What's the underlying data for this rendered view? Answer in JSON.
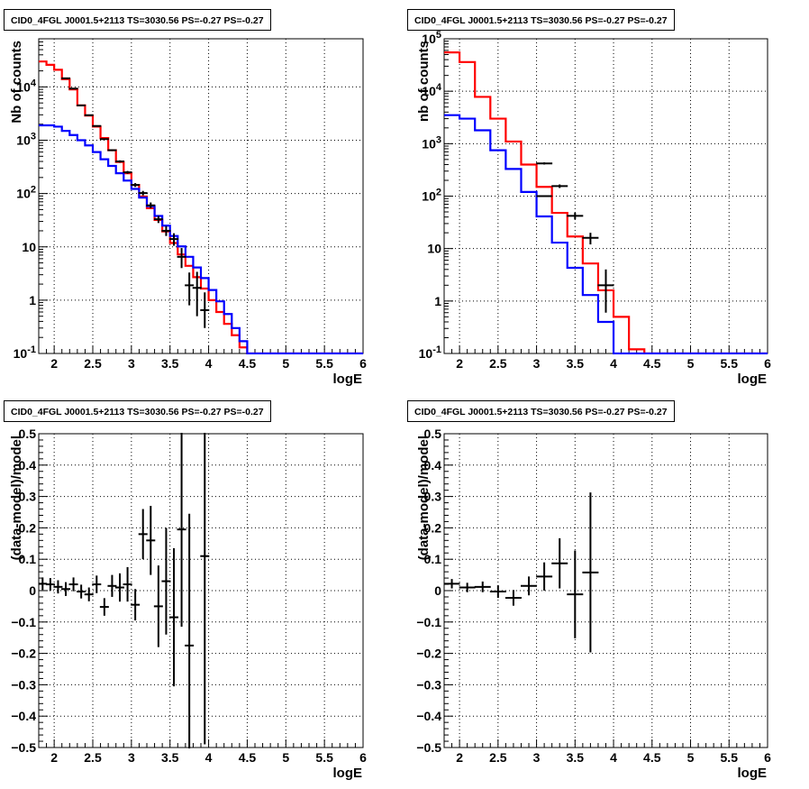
{
  "chart_data": [
    {
      "type": "line",
      "title": "CID0_4FGL J0001.5+2113 TS=3030.56 PS=-0.27 PS=-0.27",
      "xlabel": "logE",
      "ylabel": "Nb of counts",
      "xlim": [
        1.8,
        6.0
      ],
      "ylim": [
        0.1,
        80000
      ],
      "log_y": true,
      "grid": true,
      "xticks": [
        "2",
        "2.5",
        "3",
        "3.5",
        "4",
        "4.5",
        "5",
        "5.5",
        "6"
      ],
      "yticks": [
        "10^-1",
        "1",
        "10",
        "10^2",
        "10^3",
        "10^4"
      ],
      "bin_edges": [
        1.8,
        1.9,
        2.0,
        2.1,
        2.2,
        2.3,
        2.4,
        2.5,
        2.6,
        2.7,
        2.8,
        2.9,
        3.0,
        3.1,
        3.2,
        3.3,
        3.4,
        3.5,
        3.6,
        3.7,
        3.8,
        3.9,
        4.0,
        4.1,
        4.2,
        4.3,
        4.4,
        4.5,
        4.6,
        4.7,
        4.8,
        4.9,
        5.0,
        5.1,
        5.2,
        5.3,
        5.4,
        5.5,
        5.6,
        5.7,
        5.8,
        5.9,
        6.0
      ],
      "series": [
        {
          "color": "#ff0000",
          "values": [
            30000,
            26000,
            21000,
            14000,
            9000,
            4500,
            2900,
            1800,
            1100,
            650,
            390,
            240,
            145,
            88,
            53,
            32,
            19.5,
            11.8,
            7.2,
            4.4,
            2.7,
            1.65,
            1.0,
            0.6,
            0.36,
            0.22,
            0.13,
            0.1,
            0.1,
            0.1,
            0.1,
            0.1,
            0.1,
            0.1,
            0.1,
            0.1,
            0.1,
            0.1,
            0.1,
            0.1,
            0.1,
            0.1
          ]
        },
        {
          "color": "#0000ff",
          "values": [
            1900,
            1900,
            1800,
            1500,
            1250,
            1000,
            800,
            600,
            440,
            330,
            240,
            175,
            122,
            84,
            58,
            38,
            25,
            16,
            10.2,
            6.5,
            4.1,
            2.6,
            1.55,
            0.95,
            0.55,
            0.3,
            0.17,
            0.1,
            0.1,
            0.1,
            0.1,
            0.1,
            0.1,
            0.1,
            0.1,
            0.1,
            0.1,
            0.1,
            0.1,
            0.1,
            0.1,
            0.1
          ]
        }
      ],
      "data_points": {
        "color": "#000000",
        "x": [
          2.15,
          2.25,
          2.35,
          2.45,
          2.55,
          2.65,
          2.75,
          2.85,
          2.95,
          3.05,
          3.15,
          3.25,
          3.35,
          3.45,
          3.55,
          3.65,
          3.75,
          3.85,
          3.95
        ],
        "y": [
          14500,
          9300,
          4500,
          2950,
          1850,
          1050,
          650,
          400,
          250,
          145,
          102,
          60,
          33,
          20,
          14,
          6.5,
          1.9,
          1.7,
          0.65
        ],
        "ylo": [
          14300,
          9100,
          4430,
          2890,
          1810,
          1020,
          625,
          380,
          235,
          133,
          92,
          53,
          28,
          16,
          10.5,
          4,
          0.8,
          0.5,
          0.3
        ],
        "yhi": [
          14700,
          9500,
          4570,
          3010,
          1890,
          1080,
          675,
          420,
          265,
          157,
          112,
          68,
          38,
          24.5,
          18,
          9.5,
          3.3,
          3.4,
          1.4
        ]
      }
    },
    {
      "type": "line",
      "title": "CID0_4FGL J0001.5+2113 TS=3030.56 PS=-0.27 PS=-0.27",
      "xlabel": "logE",
      "ylabel": "nb of counts",
      "xlim": [
        1.8,
        6.0
      ],
      "ylim": [
        0.1,
        100000
      ],
      "log_y": true,
      "grid": true,
      "xticks": [
        "2",
        "2.5",
        "3",
        "3.5",
        "4",
        "4.5",
        "5",
        "5.5",
        "6"
      ],
      "yticks": [
        "10^-1",
        "1",
        "10",
        "10^2",
        "10^3",
        "10^4",
        "10^5"
      ],
      "bin_edges": [
        1.8,
        2.0,
        2.2,
        2.4,
        2.6,
        2.8,
        3.0,
        3.2,
        3.4,
        3.6,
        3.8,
        4.0,
        4.2,
        4.4,
        4.6,
        4.8,
        5.0,
        5.2,
        5.4,
        5.6,
        5.8,
        6.0
      ],
      "series": [
        {
          "color": "#ff0000",
          "values": [
            55000,
            36000,
            7800,
            3000,
            1100,
            400,
            150,
            48,
            17,
            5.2,
            1.6,
            0.5,
            0.12,
            0.1,
            0.1,
            0.1,
            0.1,
            0.1,
            0.1,
            0.1,
            0.1
          ]
        },
        {
          "color": "#0000ff",
          "values": [
            3500,
            3000,
            1800,
            750,
            330,
            120,
            41,
            13,
            4.3,
            1.3,
            0.4,
            0.1,
            0.1,
            0.1,
            0.1,
            0.1,
            0.1,
            0.1,
            0.1,
            0.1,
            0.1
          ]
        },
        {
          "color": "#000000",
          "values": [
            null,
            null,
            null,
            null,
            null,
            null,
            100,
            null,
            null,
            null,
            null,
            null,
            null,
            null,
            null,
            null,
            null,
            null,
            null,
            null,
            null
          ]
        }
      ],
      "data_points": {
        "color": "#000000",
        "x": [
          3.1,
          3.3,
          3.5,
          3.7,
          3.9
        ],
        "y": [
          420,
          155,
          42,
          16,
          2
        ],
        "ylo": [
          400,
          143,
          36,
          12,
          0.6
        ],
        "yhi": [
          440,
          167,
          48.5,
          20,
          4
        ]
      }
    },
    {
      "type": "scatter",
      "title": "CID0_4FGL J0001.5+2113 TS=3030.56 PS=-0.27 PS=-0.27",
      "xlabel": "logE",
      "ylabel": "(data-model)/model",
      "xlim": [
        1.8,
        6.0
      ],
      "ylim": [
        -0.5,
        0.5
      ],
      "grid": true,
      "xticks": [
        "2",
        "2.5",
        "3",
        "3.5",
        "4",
        "4.5",
        "5",
        "5.5",
        "6"
      ],
      "yticks": [
        "-0.5",
        "-0.4",
        "-0.3",
        "-0.2",
        "-0.1",
        "0",
        "0.1",
        "0.2",
        "0.3",
        "0.4",
        "0.5"
      ],
      "points": [
        {
          "x": 1.85,
          "y": 0.022,
          "err": 0.02
        },
        {
          "x": 1.95,
          "y": 0.02,
          "err": 0.02
        },
        {
          "x": 2.05,
          "y": 0.012,
          "err": 0.021
        },
        {
          "x": 2.15,
          "y": 0.005,
          "err": 0.022
        },
        {
          "x": 2.25,
          "y": 0.02,
          "err": 0.022
        },
        {
          "x": 2.35,
          "y": -0.003,
          "err": 0.022
        },
        {
          "x": 2.45,
          "y": -0.012,
          "err": 0.022
        },
        {
          "x": 2.55,
          "y": 0.02,
          "err": 0.028
        },
        {
          "x": 2.65,
          "y": -0.052,
          "err": 0.028
        },
        {
          "x": 2.75,
          "y": 0.015,
          "err": 0.035
        },
        {
          "x": 2.85,
          "y": 0.01,
          "err": 0.045
        },
        {
          "x": 2.95,
          "y": 0.02,
          "err": 0.055
        },
        {
          "x": 3.05,
          "y": -0.045,
          "err": 0.05
        },
        {
          "x": 3.15,
          "y": 0.18,
          "err": 0.08
        },
        {
          "x": 3.25,
          "y": 0.16,
          "err": 0.11
        },
        {
          "x": 3.35,
          "y": -0.05,
          "err": 0.13
        },
        {
          "x": 3.45,
          "y": 0.03,
          "err": 0.17
        },
        {
          "x": 3.55,
          "y": -0.085,
          "err": 0.22
        },
        {
          "x": 3.65,
          "y": 0.195,
          "err": 0.31
        },
        {
          "x": 3.75,
          "y": -0.175,
          "err": 0.42
        },
        {
          "x": 3.95,
          "y": 0.11,
          "err": 0.6
        }
      ]
    },
    {
      "type": "scatter",
      "title": "CID0_4FGL J0001.5+2113 TS=3030.56 PS=-0.27 PS=-0.27",
      "xlabel": "logE",
      "ylabel": "(data-model)/model",
      "xlim": [
        1.8,
        6.0
      ],
      "ylim": [
        -0.5,
        0.5
      ],
      "grid": true,
      "xticks": [
        "2",
        "2.5",
        "3",
        "3.5",
        "4",
        "4.5",
        "5",
        "5.5",
        "6"
      ],
      "yticks": [
        "-0.5",
        "-0.4",
        "-0.3",
        "-0.2",
        "-0.1",
        "0",
        "0.1",
        "0.2",
        "0.3",
        "0.4",
        "0.5"
      ],
      "points": [
        {
          "x": 1.9,
          "y": 0.022,
          "err": 0.015
        },
        {
          "x": 2.1,
          "y": 0.01,
          "err": 0.015
        },
        {
          "x": 2.3,
          "y": 0.012,
          "err": 0.017
        },
        {
          "x": 2.5,
          "y": -0.003,
          "err": 0.02
        },
        {
          "x": 2.7,
          "y": -0.023,
          "err": 0.025
        },
        {
          "x": 2.9,
          "y": 0.015,
          "err": 0.03
        },
        {
          "x": 3.1,
          "y": 0.045,
          "err": 0.045
        },
        {
          "x": 3.3,
          "y": 0.087,
          "err": 0.08
        },
        {
          "x": 3.5,
          "y": -0.012,
          "err": 0.14
        },
        {
          "x": 3.7,
          "y": 0.058,
          "err": 0.255
        }
      ]
    }
  ]
}
